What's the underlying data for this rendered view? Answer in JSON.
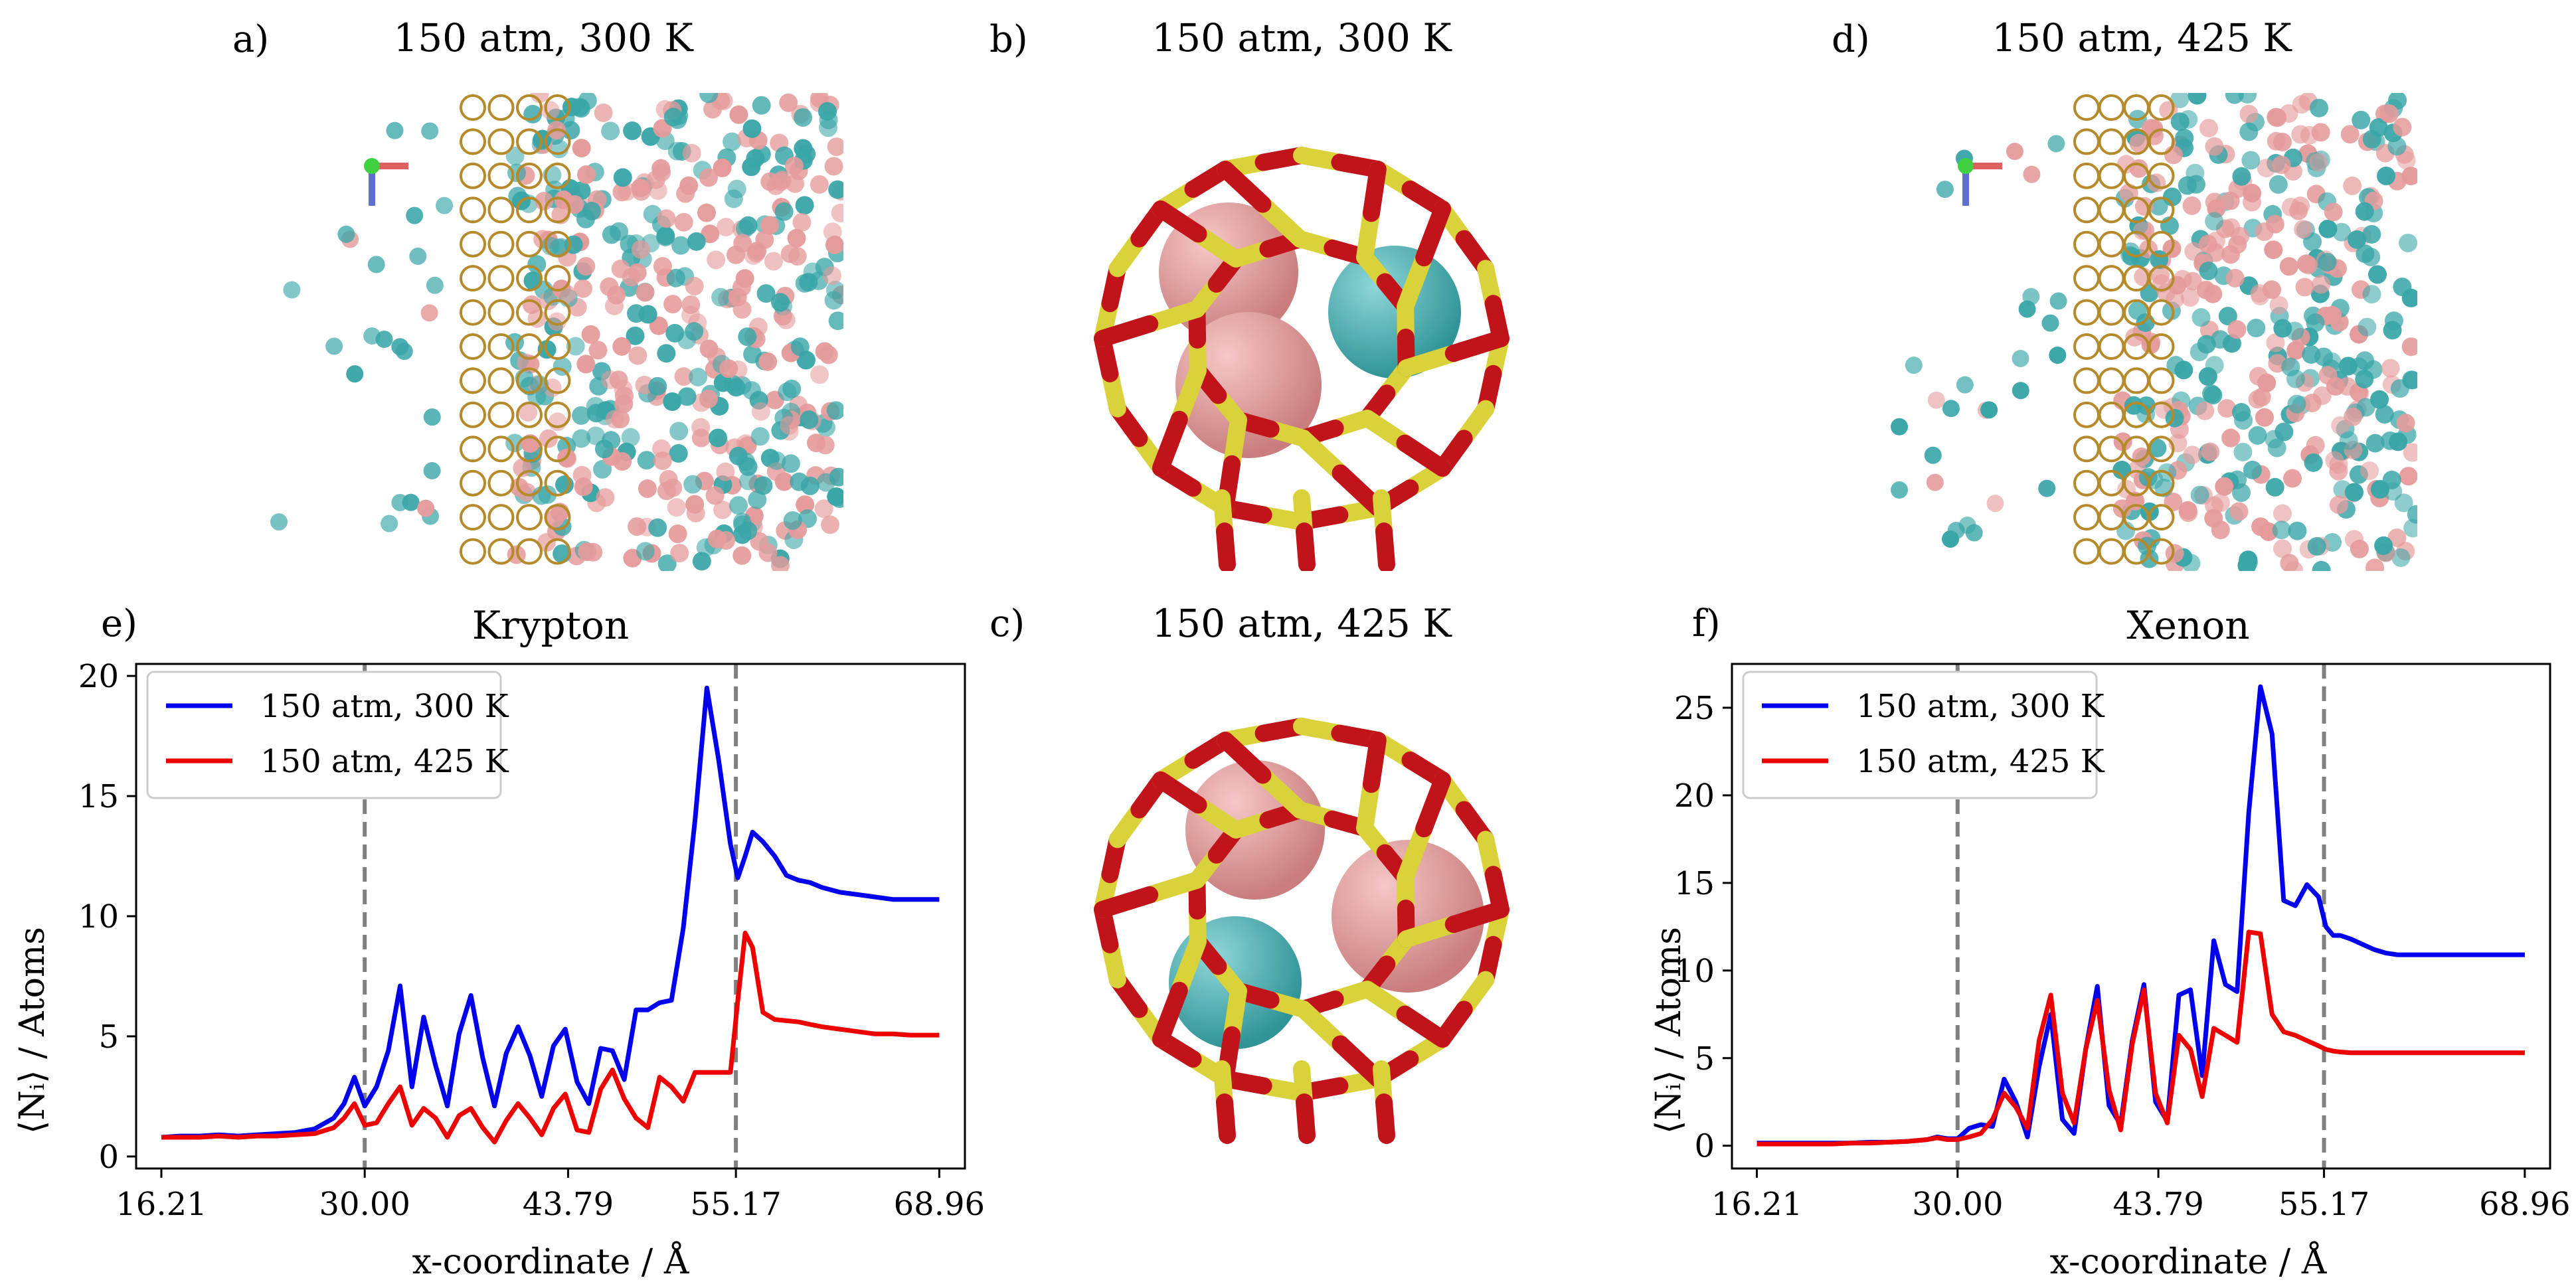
{
  "panel_labels": {
    "a": "a)",
    "b": "b)",
    "c": "c)",
    "d": "d)",
    "e": "e)",
    "f": "f)"
  },
  "snapshots": {
    "a_title": "150 atm, 300 K",
    "b_title": "150 atm, 300 K",
    "c_title": "150 atm, 425 K",
    "d_title": "150 atm, 425 K"
  },
  "colors": {
    "krypton_atom": "#3aa6a8",
    "xenon_atom": "#e59b9b",
    "framework_si": "#d9d23a",
    "framework_o": "#c0141a",
    "series_300K": "#0000ee",
    "series_425K": "#ee0000",
    "divider": "#808080"
  },
  "chart_data": [
    {
      "type": "line",
      "title": "Krypton",
      "xlabel": "x-coordinate / Å",
      "ylabel": "⟨Nᵢ⟩ / Atoms",
      "xlim": [
        14.5,
        70.7
      ],
      "ylim": [
        -0.5,
        20.5
      ],
      "xticks": [
        16.21,
        30.0,
        43.79,
        55.17,
        68.96
      ],
      "xtick_labels": [
        "16.21",
        "30.00",
        "43.79",
        "55.17",
        "68.96"
      ],
      "yticks": [
        0,
        5,
        10,
        15,
        20
      ],
      "ytick_labels": [
        "0",
        "5",
        "10",
        "15",
        "20"
      ],
      "vlines": [
        30.0,
        55.17
      ],
      "legend_position": "upper-left",
      "series": [
        {
          "name": "150 atm, 300 K",
          "color": "#0000ee",
          "x": [
            16.21,
            17.5,
            18.8,
            20.1,
            21.4,
            22.7,
            24.0,
            25.3,
            26.6,
            27.9,
            28.6,
            29.3,
            30.0,
            30.8,
            31.6,
            32.4,
            33.2,
            34.0,
            34.8,
            35.6,
            36.4,
            37.2,
            38.0,
            38.8,
            39.6,
            40.4,
            41.2,
            42.0,
            42.8,
            43.6,
            44.4,
            45.2,
            46.0,
            46.8,
            47.6,
            48.4,
            49.2,
            50.0,
            50.8,
            51.6,
            52.4,
            53.2,
            54.0,
            54.8,
            55.3,
            55.8,
            56.3,
            57.0,
            57.8,
            58.6,
            59.4,
            60.2,
            61.0,
            62.2,
            63.4,
            64.6,
            65.8,
            67.0,
            68.96
          ],
          "y": [
            0.8,
            0.85,
            0.85,
            0.9,
            0.85,
            0.9,
            0.95,
            1.0,
            1.15,
            1.6,
            2.2,
            3.3,
            2.1,
            2.9,
            4.4,
            7.1,
            2.9,
            5.8,
            3.8,
            2.1,
            5.1,
            6.7,
            4.1,
            2.1,
            4.3,
            5.4,
            4.2,
            2.5,
            4.6,
            5.3,
            3.1,
            2.2,
            4.5,
            4.4,
            3.2,
            6.1,
            6.1,
            6.4,
            6.5,
            9.5,
            14.0,
            19.5,
            16.5,
            13.0,
            11.6,
            12.5,
            13.5,
            13.1,
            12.5,
            11.7,
            11.5,
            11.4,
            11.2,
            11.0,
            10.9,
            10.8,
            10.7,
            10.7,
            10.7
          ]
        },
        {
          "name": "150 atm, 425 K",
          "color": "#ee0000",
          "x": [
            16.21,
            17.5,
            18.8,
            20.1,
            21.4,
            22.7,
            24.0,
            25.3,
            26.6,
            27.9,
            28.6,
            29.3,
            30.0,
            30.8,
            31.6,
            32.4,
            33.2,
            34.0,
            34.8,
            35.6,
            36.4,
            37.2,
            38.0,
            38.8,
            39.6,
            40.4,
            41.2,
            42.0,
            42.8,
            43.6,
            44.4,
            45.2,
            46.0,
            46.8,
            47.6,
            48.4,
            49.2,
            50.0,
            50.8,
            51.6,
            52.4,
            53.2,
            54.0,
            54.8,
            55.3,
            55.8,
            56.3,
            57.0,
            57.8,
            58.6,
            59.4,
            60.2,
            61.0,
            62.2,
            63.4,
            64.6,
            65.8,
            67.0,
            68.96
          ],
          "y": [
            0.8,
            0.8,
            0.8,
            0.85,
            0.8,
            0.85,
            0.85,
            0.9,
            0.95,
            1.2,
            1.6,
            2.2,
            1.3,
            1.4,
            2.2,
            2.9,
            1.3,
            2.0,
            1.6,
            0.8,
            1.7,
            2.0,
            1.2,
            0.6,
            1.5,
            2.2,
            1.6,
            0.9,
            2.0,
            2.6,
            1.1,
            1.0,
            2.8,
            3.6,
            2.4,
            1.6,
            1.2,
            3.3,
            2.9,
            2.3,
            3.5,
            3.5,
            3.5,
            3.5,
            6.5,
            9.3,
            8.7,
            6.0,
            5.7,
            5.65,
            5.6,
            5.5,
            5.4,
            5.3,
            5.2,
            5.1,
            5.1,
            5.05,
            5.05
          ]
        }
      ]
    },
    {
      "type": "line",
      "title": "Xenon",
      "xlabel": "x-coordinate / Å",
      "ylabel": "⟨Nᵢ⟩ / Atoms",
      "xlim": [
        14.5,
        70.7
      ],
      "ylim": [
        -1.3,
        27.5
      ],
      "xticks": [
        16.21,
        30.0,
        43.79,
        55.17,
        68.96
      ],
      "xtick_labels": [
        "16.21",
        "30.00",
        "43.79",
        "55.17",
        "68.96"
      ],
      "yticks": [
        0,
        5,
        10,
        15,
        20,
        25
      ],
      "ytick_labels": [
        "0",
        "5",
        "10",
        "15",
        "20",
        "25"
      ],
      "vlines": [
        30.0,
        55.17
      ],
      "legend_position": "upper-left",
      "series": [
        {
          "name": "150 atm, 300 K",
          "color": "#0000ee",
          "x": [
            16.21,
            17.5,
            18.8,
            20.1,
            21.4,
            22.7,
            24.0,
            25.3,
            26.6,
            27.9,
            28.6,
            29.3,
            30.0,
            30.8,
            31.6,
            32.4,
            33.2,
            34.0,
            34.8,
            35.6,
            36.4,
            37.2,
            38.0,
            38.8,
            39.6,
            40.4,
            41.2,
            42.0,
            42.8,
            43.6,
            44.4,
            45.2,
            46.0,
            46.8,
            47.6,
            48.4,
            49.2,
            50.0,
            50.8,
            51.6,
            52.4,
            53.2,
            54.0,
            54.8,
            55.3,
            55.8,
            56.3,
            57.0,
            57.8,
            58.6,
            59.4,
            60.2,
            61.0,
            62.2,
            63.4,
            64.6,
            65.8,
            67.0,
            68.96
          ],
          "y": [
            0.15,
            0.15,
            0.15,
            0.15,
            0.15,
            0.15,
            0.2,
            0.2,
            0.25,
            0.35,
            0.5,
            0.4,
            0.4,
            1.0,
            1.2,
            1.1,
            3.8,
            2.5,
            0.5,
            4.5,
            7.5,
            1.5,
            0.7,
            5.5,
            9.1,
            2.3,
            1.2,
            6.0,
            9.2,
            2.5,
            1.4,
            8.6,
            8.9,
            4.0,
            11.7,
            9.2,
            8.8,
            19.0,
            26.2,
            23.5,
            14.0,
            13.7,
            14.9,
            14.2,
            12.5,
            12.0,
            12.0,
            11.8,
            11.5,
            11.2,
            11.0,
            10.9,
            10.9,
            10.9,
            10.9,
            10.9,
            10.9,
            10.9,
            10.9
          ]
        },
        {
          "name": "150 atm, 425 K",
          "color": "#ee0000",
          "x": [
            16.21,
            17.5,
            18.8,
            20.1,
            21.4,
            22.7,
            24.0,
            25.3,
            26.6,
            27.9,
            28.6,
            29.3,
            30.0,
            30.8,
            31.6,
            32.4,
            33.2,
            34.0,
            34.8,
            35.6,
            36.4,
            37.2,
            38.0,
            38.8,
            39.6,
            40.4,
            41.2,
            42.0,
            42.8,
            43.6,
            44.4,
            45.2,
            46.0,
            46.8,
            47.6,
            48.4,
            49.2,
            50.0,
            50.8,
            51.6,
            52.4,
            53.2,
            54.0,
            54.8,
            55.3,
            55.8,
            56.3,
            57.0,
            57.8,
            58.6,
            59.4,
            60.2,
            61.0,
            62.2,
            63.4,
            64.6,
            65.8,
            67.0,
            68.96
          ],
          "y": [
            0.1,
            0.1,
            0.1,
            0.1,
            0.1,
            0.15,
            0.15,
            0.2,
            0.25,
            0.35,
            0.45,
            0.35,
            0.35,
            0.5,
            0.7,
            1.5,
            3.0,
            2.2,
            1.0,
            6.0,
            8.6,
            3.0,
            1.3,
            5.5,
            8.3,
            3.2,
            0.9,
            5.8,
            8.9,
            3.0,
            1.3,
            6.3,
            5.5,
            2.8,
            6.7,
            6.3,
            5.9,
            12.2,
            12.1,
            7.5,
            6.5,
            6.3,
            6.0,
            5.7,
            5.5,
            5.4,
            5.35,
            5.3,
            5.3,
            5.3,
            5.3,
            5.3,
            5.3,
            5.3,
            5.3,
            5.3,
            5.3,
            5.3,
            5.3
          ]
        }
      ]
    }
  ]
}
